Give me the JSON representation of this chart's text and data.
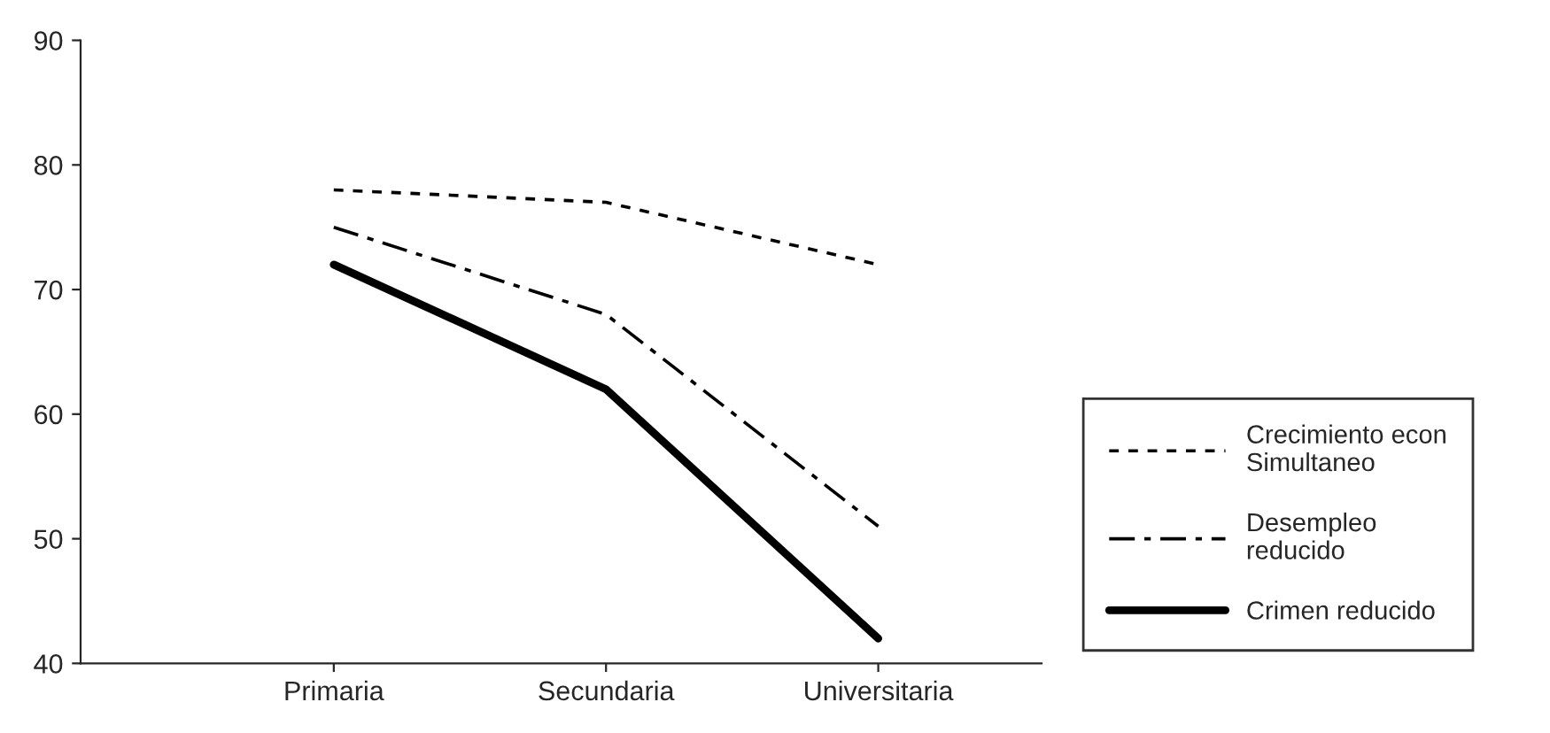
{
  "chart_data": {
    "type": "line",
    "categories": [
      "Primaria",
      "Secundaria",
      "Universitaria"
    ],
    "series": [
      {
        "name": "Crecimiento econ\nSimultaneo",
        "color": "#000000",
        "line_style": "dotted",
        "values": [
          78,
          77,
          72
        ]
      },
      {
        "name": "Desempleo\nreducido",
        "color": "#000000",
        "line_style": "dashdot",
        "values": [
          75,
          68,
          51
        ]
      },
      {
        "name": "Crimen reducido",
        "color": "#000000",
        "line_style": "solid",
        "values": [
          72,
          62,
          42
        ]
      }
    ],
    "ylim": [
      40,
      90
    ],
    "yticks": [
      40,
      50,
      60,
      70,
      80,
      90
    ],
    "grid": false,
    "legend": "right",
    "marker": "none"
  }
}
